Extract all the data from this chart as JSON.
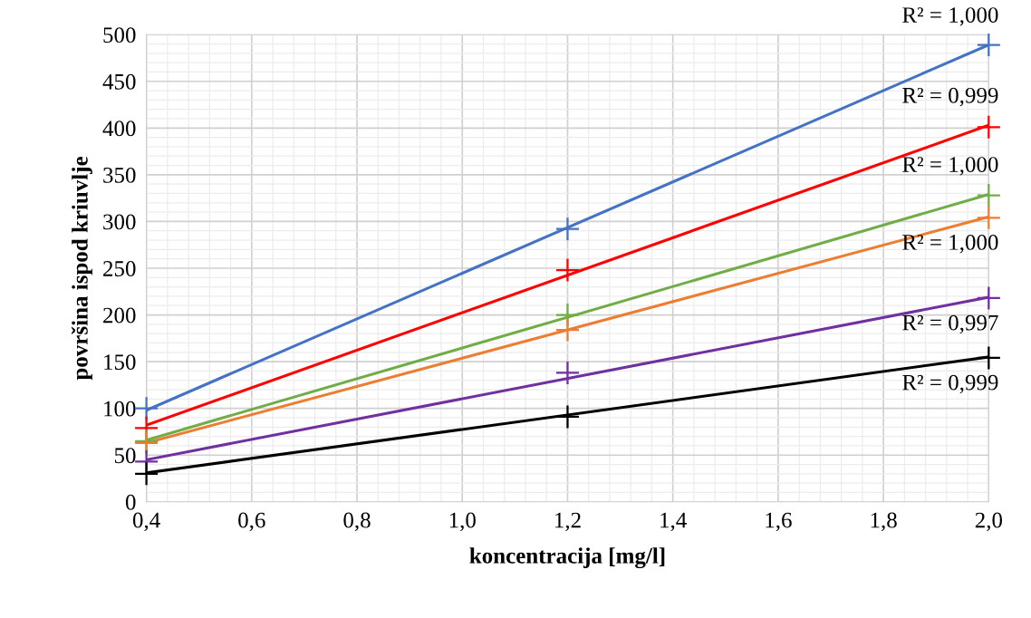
{
  "chart_data": {
    "type": "scatter",
    "xlabel": "koncentracija [mg/l]",
    "ylabel": "površina ispod kriuvlje",
    "xlim": [
      0.4,
      2.0
    ],
    "ylim": [
      0,
      500
    ],
    "xticks": [
      {
        "value": 0.4,
        "label": "0,4"
      },
      {
        "value": 0.6,
        "label": "0,6"
      },
      {
        "value": 0.8,
        "label": "0,8"
      },
      {
        "value": 1.0,
        "label": "1,0"
      },
      {
        "value": 1.2,
        "label": "1,2"
      },
      {
        "value": 1.4,
        "label": "1,4"
      },
      {
        "value": 1.6,
        "label": "1,6"
      },
      {
        "value": 1.8,
        "label": "1,8"
      },
      {
        "value": 2.0,
        "label": "2,0"
      }
    ],
    "yticks": [
      0,
      50,
      100,
      150,
      200,
      250,
      300,
      350,
      400,
      450,
      500
    ],
    "grid": true,
    "marker": "cross",
    "series": [
      {
        "type": "scatter",
        "color": "#4472c4",
        "x": [
          0.4,
          1.2,
          2.0
        ],
        "values": [
          100,
          292,
          489
        ]
      },
      {
        "type": "line",
        "color": "#4472c4",
        "x": [
          0.4,
          2.0
        ],
        "values": [
          98,
          489
        ],
        "marker": "none"
      },
      {
        "type": "scatter",
        "color": "#ff0000",
        "x": [
          0.4,
          1.2,
          2.0
        ],
        "values": [
          79,
          248,
          401
        ]
      },
      {
        "type": "line",
        "color": "#ff0000",
        "x": [
          0.4,
          2.0
        ],
        "values": [
          82,
          403
        ],
        "marker": "none"
      },
      {
        "type": "scatter",
        "color": "#70ad47",
        "x": [
          0.4,
          1.2,
          2.0
        ],
        "values": [
          65,
          200,
          328
        ]
      },
      {
        "type": "line",
        "color": "#70ad47",
        "x": [
          0.4,
          2.0
        ],
        "values": [
          66,
          329
        ],
        "marker": "none"
      },
      {
        "type": "scatter",
        "color": "#ed7d31",
        "x": [
          0.4,
          1.2,
          2.0
        ],
        "values": [
          63,
          184,
          304
        ]
      },
      {
        "type": "line",
        "color": "#ed7d31",
        "x": [
          0.4,
          2.0
        ],
        "values": [
          63,
          305
        ],
        "marker": "none"
      },
      {
        "type": "scatter",
        "color": "#7030a0",
        "x": [
          0.4,
          1.2,
          2.0
        ],
        "values": [
          43,
          138,
          218
        ]
      },
      {
        "type": "line",
        "color": "#7030a0",
        "x": [
          0.4,
          2.0
        ],
        "values": [
          45,
          219
        ],
        "marker": "none"
      },
      {
        "type": "scatter",
        "color": "#000000",
        "x": [
          0.4,
          1.2,
          2.0
        ],
        "values": [
          30,
          91,
          154
        ]
      },
      {
        "type": "line",
        "color": "#000000",
        "x": [
          0.4,
          2.0
        ],
        "values": [
          31,
          155
        ],
        "marker": "none"
      }
    ],
    "annotations": [
      "R² = 1,000",
      "R² = 0,999",
      "R² = 1,000",
      "R² = 1,000",
      "R² = 0,997",
      "R² = 0,999"
    ]
  }
}
